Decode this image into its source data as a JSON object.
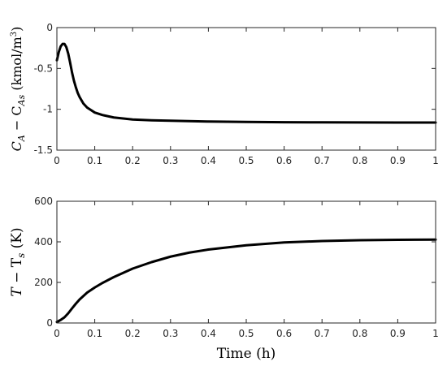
{
  "chart_data": [
    {
      "type": "line",
      "ylabel": {
        "pre": "C",
        "sub1": "A",
        "mid": " − C",
        "sub2": "As",
        "unit": "(kmol/m",
        "sup": "3",
        "close": ")"
      },
      "xlabel": "",
      "xlim": [
        0,
        1
      ],
      "ylim": [
        -1.5,
        0
      ],
      "xticks": [
        0,
        0.1,
        0.2,
        0.3,
        0.4,
        0.5,
        0.6,
        0.7,
        0.8,
        0.9,
        1
      ],
      "xtick_labels": [
        "0",
        "0.1",
        "0.2",
        "0.3",
        "0.4",
        "0.5",
        "0.6",
        "0.7",
        "0.8",
        "0.9",
        "1"
      ],
      "yticks": [
        -1.5,
        -1,
        -0.5,
        0
      ],
      "ytick_labels": [
        "-1.5",
        "-1",
        "-0.5",
        "0"
      ],
      "grid": false,
      "series": [
        {
          "x": [
            0,
            0.005,
            0.01,
            0.015,
            0.02,
            0.025,
            0.03,
            0.035,
            0.04,
            0.045,
            0.05,
            0.055,
            0.06,
            0.065,
            0.07,
            0.08,
            0.09,
            0.1,
            0.12,
            0.15,
            0.2,
            0.25,
            0.3,
            0.4,
            0.5,
            0.6,
            0.7,
            0.8,
            0.9,
            1.0
          ],
          "y": [
            -0.4,
            -0.3,
            -0.23,
            -0.2,
            -0.2,
            -0.24,
            -0.32,
            -0.43,
            -0.55,
            -0.65,
            -0.73,
            -0.8,
            -0.85,
            -0.89,
            -0.93,
            -0.98,
            -1.01,
            -1.04,
            -1.07,
            -1.1,
            -1.125,
            -1.135,
            -1.14,
            -1.15,
            -1.155,
            -1.158,
            -1.16,
            -1.161,
            -1.162,
            -1.162
          ]
        }
      ]
    },
    {
      "type": "line",
      "ylabel": {
        "pre": "T",
        "mid": " − T",
        "sub": "s",
        "unit": "(K)"
      },
      "xlabel": "Time (h)",
      "xlim": [
        0,
        1
      ],
      "ylim": [
        0,
        600
      ],
      "xticks": [
        0,
        0.1,
        0.2,
        0.3,
        0.4,
        0.5,
        0.6,
        0.7,
        0.8,
        0.9,
        1
      ],
      "xtick_labels": [
        "0",
        "0.1",
        "0.2",
        "0.3",
        "0.4",
        "0.5",
        "0.6",
        "0.7",
        "0.8",
        "0.9",
        "1"
      ],
      "yticks": [
        0,
        200,
        400,
        600
      ],
      "ytick_labels": [
        "0",
        "200",
        "400",
        "600"
      ],
      "grid": false,
      "series": [
        {
          "x": [
            0,
            0.01,
            0.02,
            0.03,
            0.04,
            0.05,
            0.06,
            0.07,
            0.08,
            0.1,
            0.12,
            0.15,
            0.2,
            0.25,
            0.3,
            0.35,
            0.4,
            0.5,
            0.6,
            0.7,
            0.8,
            0.9,
            1.0
          ],
          "y": [
            5,
            15,
            28,
            48,
            72,
            95,
            116,
            133,
            150,
            175,
            197,
            226,
            268,
            300,
            327,
            347,
            362,
            383,
            397,
            404,
            408,
            410,
            411
          ]
        }
      ]
    }
  ]
}
